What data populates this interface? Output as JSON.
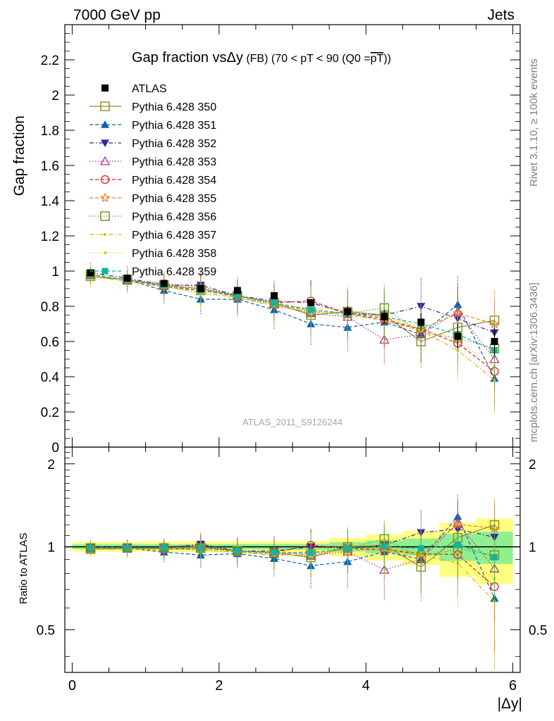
{
  "header": {
    "left": "7000 GeV pp",
    "right": "Jets"
  },
  "side_labels": {
    "rivet": "Rivet 3.1.10, ≥ 100k events",
    "mcplots": "mcplots.cern.ch [arXiv:1306.3436]"
  },
  "chart_data": {
    "type": "scatter",
    "title": "Gap fraction vs Δy (FB) (70 < pT < 90 (Q0 = pT))",
    "title_parts": {
      "main": "Gap fraction vs",
      "delta": "Δ",
      "y": "y",
      "rest": " (FB) (70 < pT <  90 (Q0 =",
      "overline": "pT",
      "close": "))"
    },
    "watermark": "ATLAS_2011_S9126244",
    "xlabel": "|Δy|",
    "ylabel": "Gap fraction",
    "ratio_ylabel": "Ratio to ATLAS",
    "xlim": [
      -0.1,
      6.1
    ],
    "ylim": [
      0,
      2.4
    ],
    "ratio_ylim": [
      0.35,
      2.3
    ],
    "ratio_log_scale": true,
    "x_ticks": [
      "0",
      "2",
      "4",
      "6"
    ],
    "y_ticks": [
      "0",
      "0.2",
      "0.4",
      "0.6",
      "0.8",
      "1",
      "1.2",
      "1.4",
      "1.6",
      "1.8",
      "2",
      "2.2"
    ],
    "ratio_ticks": [
      "0.5",
      "1",
      "2"
    ],
    "legend_position": "top-left",
    "x": [
      0.25,
      0.75,
      1.25,
      1.75,
      2.25,
      2.75,
      3.25,
      3.75,
      4.25,
      4.75,
      5.25,
      5.75
    ],
    "data": {
      "name": "ATLAS",
      "values": [
        0.99,
        0.96,
        0.93,
        0.9,
        0.89,
        0.86,
        0.82,
        0.77,
        0.74,
        0.71,
        0.63,
        0.6
      ],
      "errors": [
        0.02,
        0.02,
        0.02,
        0.02,
        0.02,
        0.02,
        0.02,
        0.03,
        0.04,
        0.05,
        0.07,
        0.08
      ],
      "color": "#000000"
    },
    "series": [
      {
        "name": "Pythia 6.428 350",
        "color": "#8b8b1f",
        "marker": "square-open",
        "dash": "solid",
        "values": [
          0.97,
          0.95,
          0.92,
          0.9,
          0.86,
          0.82,
          0.75,
          0.77,
          0.75,
          0.6,
          0.68,
          0.72
        ]
      },
      {
        "name": "Pythia 6.428 351",
        "color": "#0d5fb4",
        "marker": "triangle-up",
        "dash": "dashed",
        "values": [
          0.98,
          0.95,
          0.89,
          0.84,
          0.84,
          0.78,
          0.7,
          0.68,
          0.71,
          0.64,
          0.81,
          0.39
        ]
      },
      {
        "name": "Pythia 6.428 352",
        "color": "#3b22a0",
        "marker": "triangle-down",
        "dash": "dashdot",
        "values": [
          0.99,
          0.96,
          0.92,
          0.92,
          0.86,
          0.83,
          0.82,
          0.76,
          0.75,
          0.8,
          0.73,
          0.65
        ]
      },
      {
        "name": "Pythia 6.428 353",
        "color": "#b0247a",
        "marker": "triangle-open",
        "dash": "dotted",
        "values": [
          0.98,
          0.95,
          0.93,
          0.91,
          0.86,
          0.81,
          0.76,
          0.74,
          0.61,
          0.64,
          0.77,
          0.5
        ]
      },
      {
        "name": "Pythia 6.428 354",
        "color": "#e02020",
        "marker": "circle-open",
        "dash": "dashed",
        "values": [
          0.98,
          0.95,
          0.91,
          0.89,
          0.86,
          0.82,
          0.83,
          0.76,
          0.72,
          0.67,
          0.59,
          0.43
        ]
      },
      {
        "name": "Pythia 6.428 355",
        "color": "#f07a1e",
        "marker": "star-open",
        "dash": "dashed",
        "values": [
          0.98,
          0.95,
          0.92,
          0.9,
          0.85,
          0.81,
          0.78,
          0.76,
          0.73,
          0.67,
          0.76,
          0.7
        ]
      },
      {
        "name": "Pythia 6.428 356",
        "color": "#6f8f1f",
        "marker": "square-open",
        "dash": "dotted",
        "values": [
          0.98,
          0.95,
          0.92,
          0.89,
          0.86,
          0.82,
          0.77,
          0.76,
          0.79,
          0.65,
          0.62,
          0.56
        ]
      },
      {
        "name": "Pythia 6.428 357",
        "color": "#d8b800",
        "marker": "dot",
        "dash": "dashdot",
        "values": [
          0.97,
          0.94,
          0.91,
          0.88,
          0.85,
          0.8,
          0.77,
          0.75,
          0.72,
          0.66,
          0.55,
          0.38
        ]
      },
      {
        "name": "Pythia 6.428 358",
        "color": "#c6d21c",
        "marker": "dot",
        "dash": "dotted",
        "values": [
          0.97,
          0.94,
          0.92,
          0.87,
          0.85,
          0.81,
          0.79,
          0.78,
          0.74,
          0.68,
          0.6,
          0.46
        ]
      },
      {
        "name": "Pythia 6.428 359",
        "color": "#12b4a0",
        "marker": "square-filled",
        "dash": "dashed",
        "values": [
          0.98,
          0.95,
          0.92,
          0.89,
          0.86,
          0.82,
          0.78,
          0.76,
          0.74,
          0.7,
          0.64,
          0.55
        ]
      }
    ]
  }
}
